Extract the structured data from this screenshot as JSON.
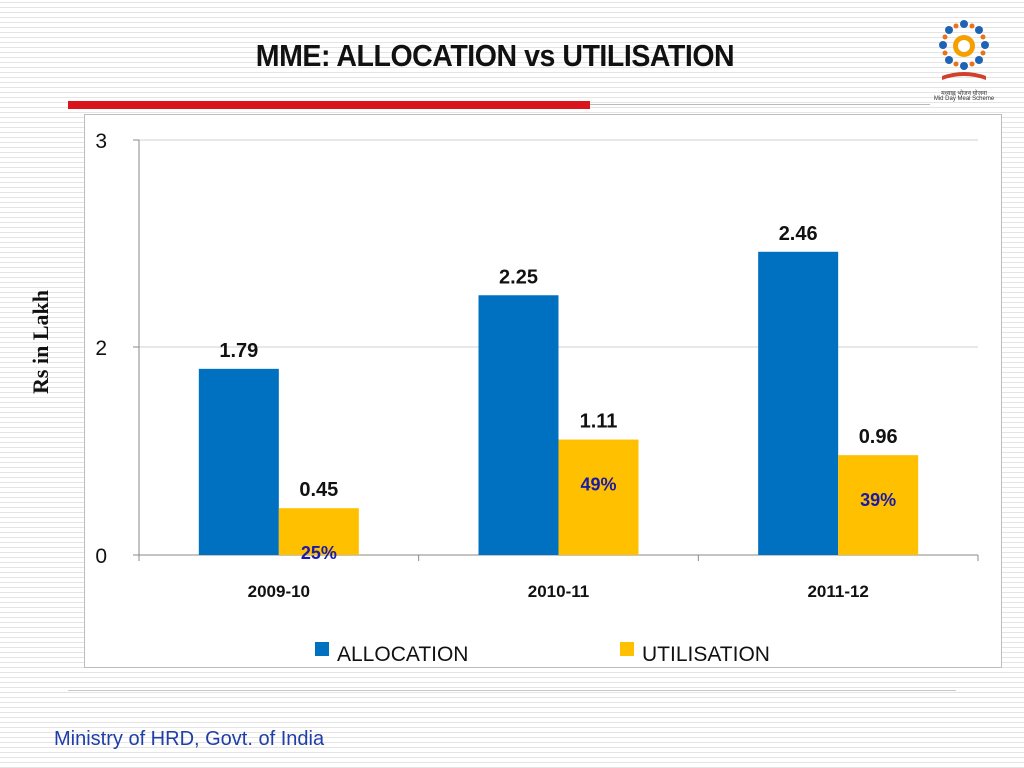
{
  "slide": {
    "title": "MME: ALLOCATION vs UTILISATION",
    "footer": "Ministry of HRD, Govt. of India"
  },
  "logo": {
    "name": "mid-day-meal-scheme-logo",
    "text_line1": "मध्याह्न भोजन योजना",
    "text_line2": "Mid Day Meal Scheme"
  },
  "colors": {
    "title_bar": "#d9141b",
    "allocation": "#0070c0",
    "utilisation": "#ffc000",
    "percent_label": "#1a1aa8",
    "footer": "#1f3ea8"
  },
  "chart_data": {
    "type": "bar",
    "title": "",
    "ylabel": "Rs in Lakh",
    "xlabel": "",
    "categories": [
      "2009-10",
      "2010-11",
      "2011-12"
    ],
    "series": [
      {
        "name": "ALLOCATION",
        "values": [
          1.79,
          2.25,
          2.46
        ],
        "labels": [
          "1.79",
          "2.25",
          "2.46"
        ]
      },
      {
        "name": "UTILISATION",
        "values": [
          0.45,
          1.11,
          0.96
        ],
        "labels": [
          "0.45",
          "1.11",
          "0.96"
        ]
      }
    ],
    "inner_labels": [
      "25%",
      "49%",
      "39%"
    ],
    "yticks": [
      {
        "value": 0,
        "label": "0"
      },
      {
        "value": 2,
        "label": "2"
      },
      {
        "value": 3,
        "label": "3"
      }
    ],
    "grid": true,
    "legend": "bottom"
  }
}
